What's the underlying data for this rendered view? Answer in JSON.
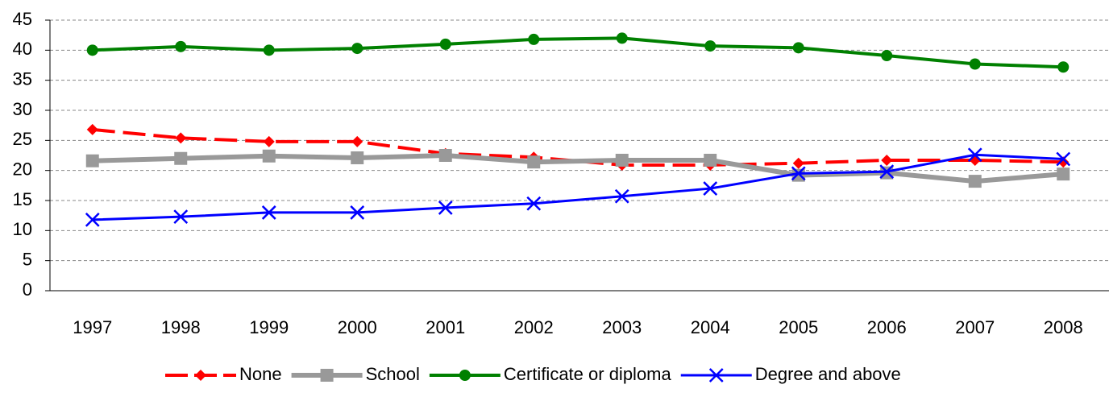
{
  "chart_data": {
    "type": "line",
    "categories": [
      "1997",
      "1998",
      "1999",
      "2000",
      "2001",
      "2002",
      "2003",
      "2004",
      "2005",
      "2006",
      "2007",
      "2008"
    ],
    "series": [
      {
        "name": "None",
        "color": "#ff0000",
        "dash": true,
        "marker": "diamond",
        "values": [
          26.8,
          25.4,
          24.8,
          24.8,
          22.8,
          22.2,
          20.9,
          20.9,
          21.2,
          21.7,
          21.7,
          21.4
        ]
      },
      {
        "name": "School",
        "color": "#999999",
        "dash": false,
        "marker": "square",
        "values": [
          21.6,
          22.0,
          22.4,
          22.1,
          22.5,
          21.4,
          21.7,
          21.7,
          19.2,
          19.6,
          18.2,
          19.4
        ]
      },
      {
        "name": "Certificate or diploma",
        "color": "#008000",
        "dash": false,
        "marker": "circle",
        "values": [
          40.0,
          40.6,
          40.0,
          40.3,
          41.0,
          41.8,
          42.0,
          40.7,
          40.4,
          39.1,
          37.7,
          37.2
        ]
      },
      {
        "name": "Degree and above",
        "color": "#0000ff",
        "dash": false,
        "marker": "x",
        "values": [
          11.8,
          12.3,
          13.0,
          13.0,
          13.8,
          14.5,
          15.7,
          17.0,
          19.5,
          19.8,
          22.6,
          21.9
        ]
      }
    ],
    "ylim": [
      0,
      45
    ],
    "yticks": [
      0,
      5,
      10,
      15,
      20,
      25,
      30,
      35,
      40,
      45
    ],
    "grid": true,
    "legend": "bottom"
  }
}
